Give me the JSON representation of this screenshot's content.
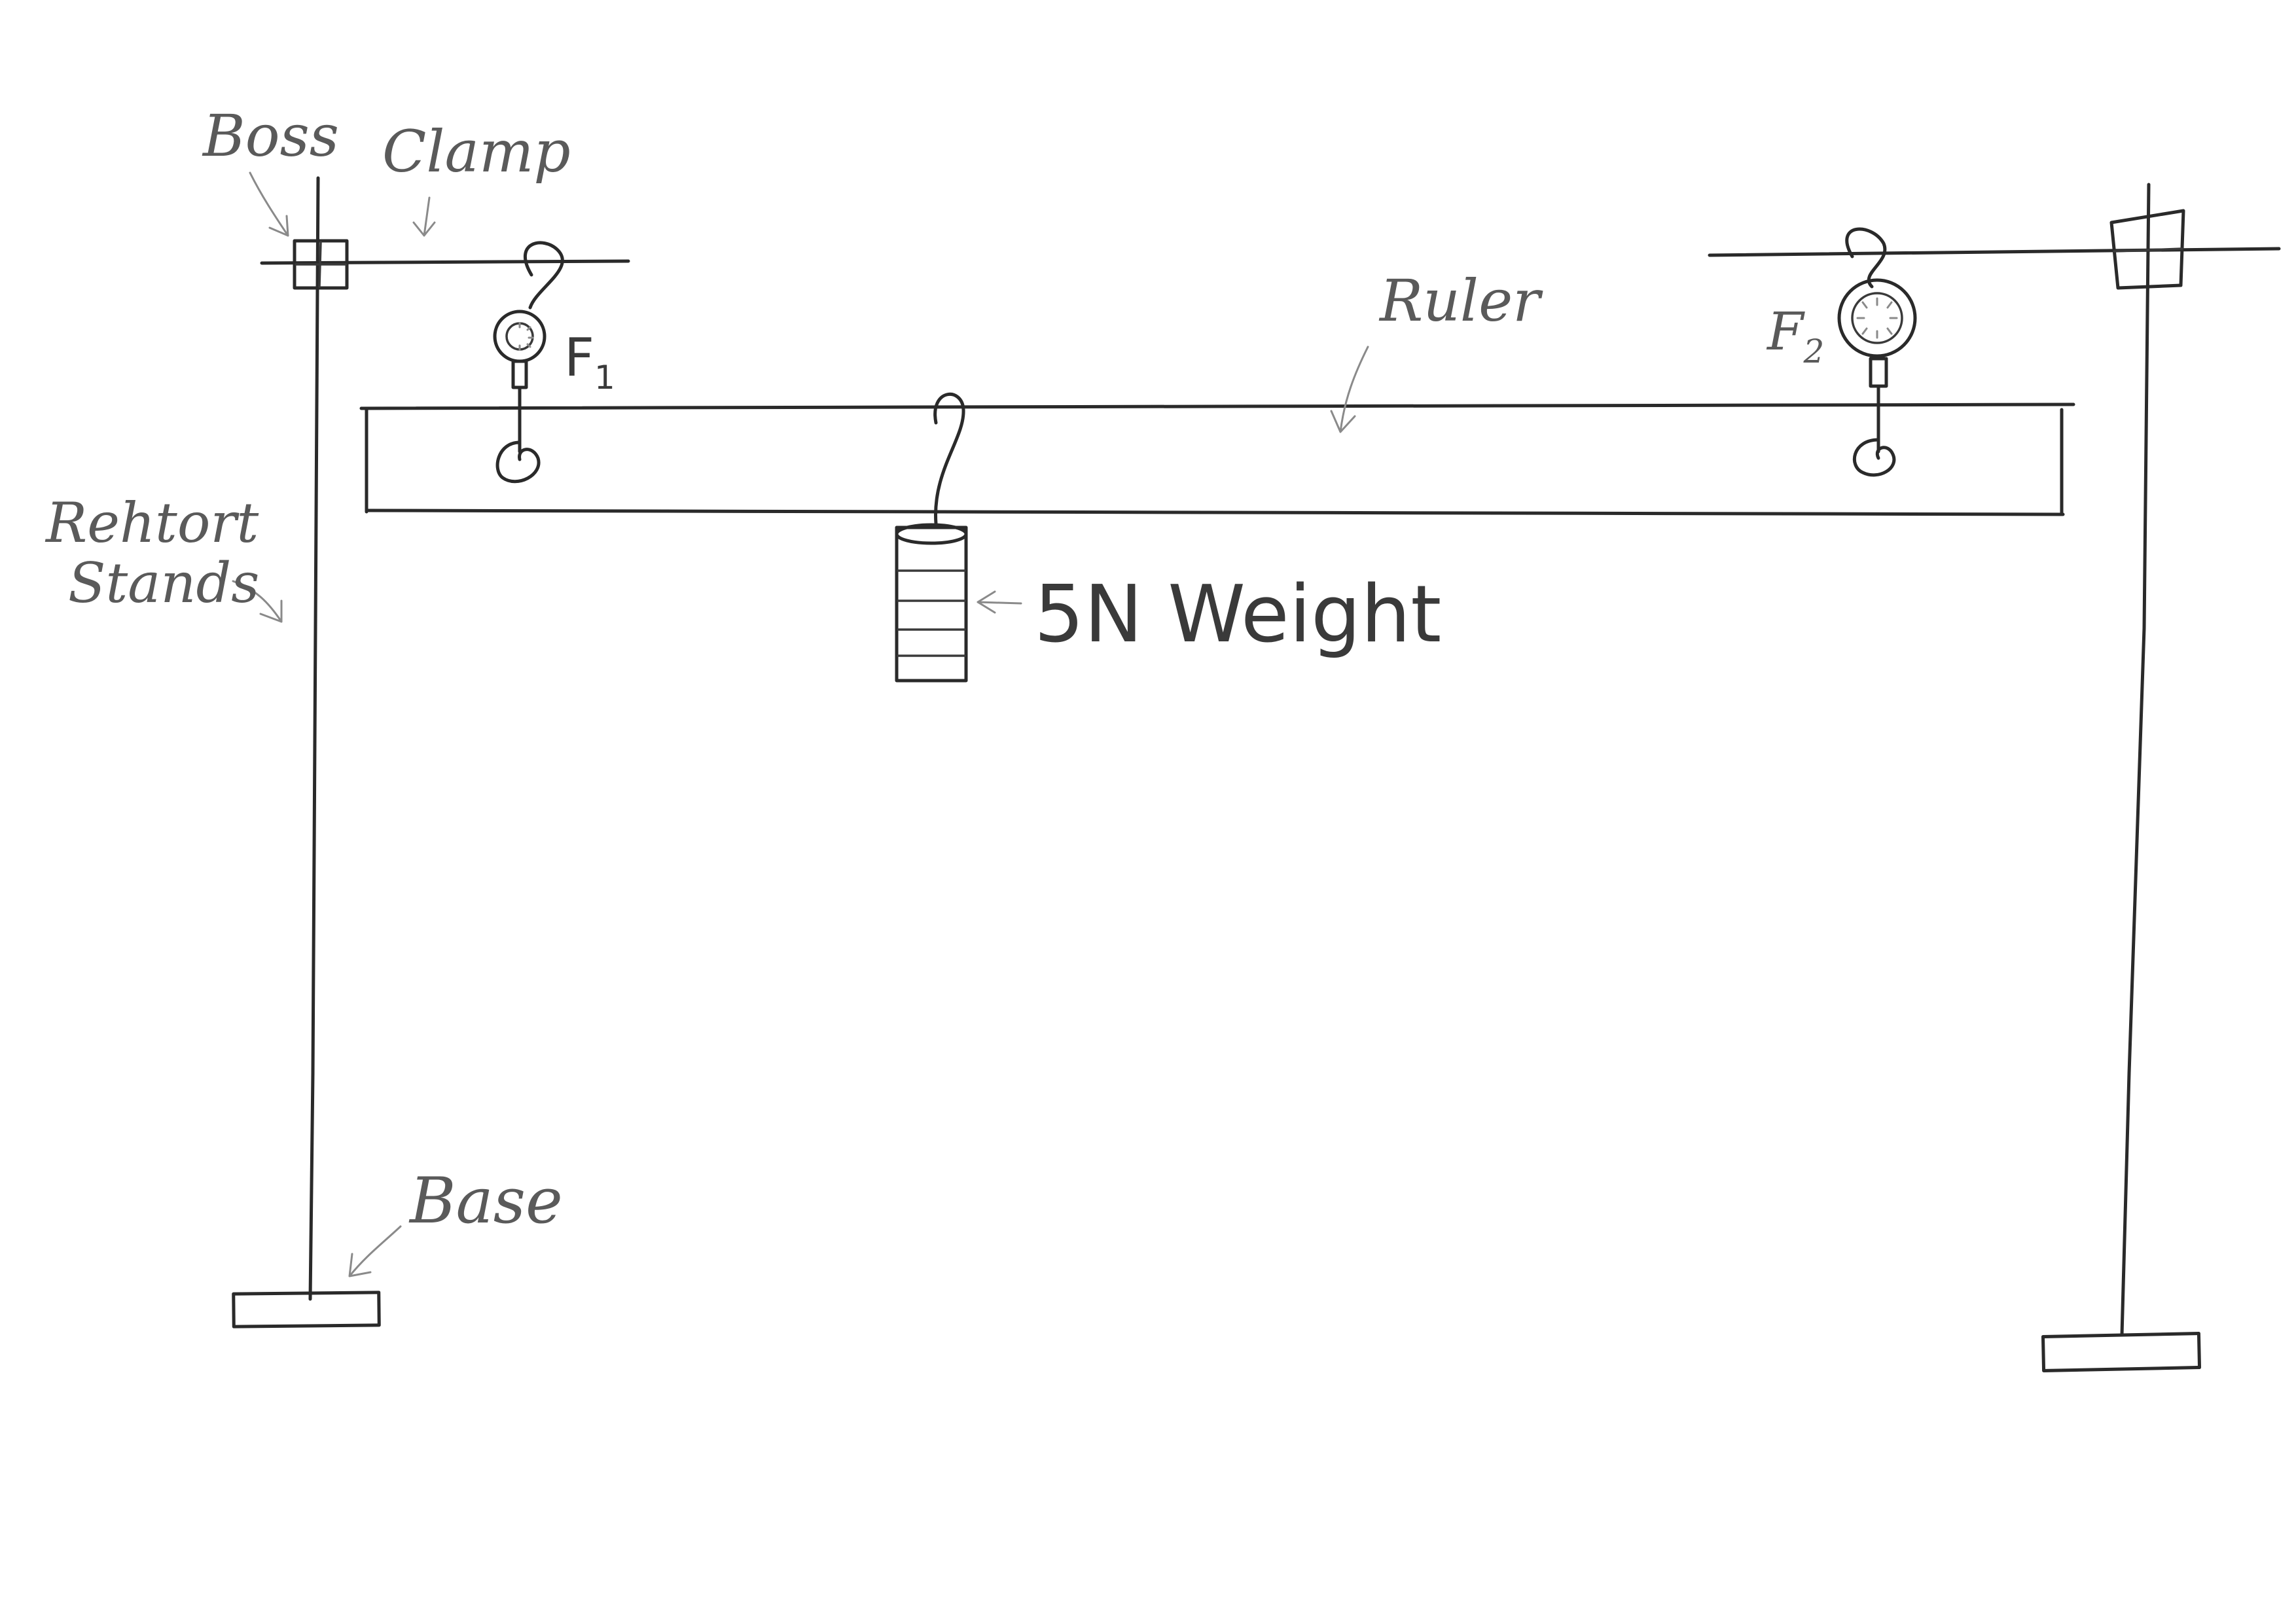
{
  "labels": {
    "boss": "Boss",
    "clamp": "Clamp",
    "retort_stand": [
      "Rehtort",
      "Stands"
    ],
    "ruler": "Ruler",
    "weight": "5N Weight",
    "base": "Base",
    "f1": "F",
    "f1_sub": "1",
    "f2": "F",
    "f2_sub": "2"
  }
}
